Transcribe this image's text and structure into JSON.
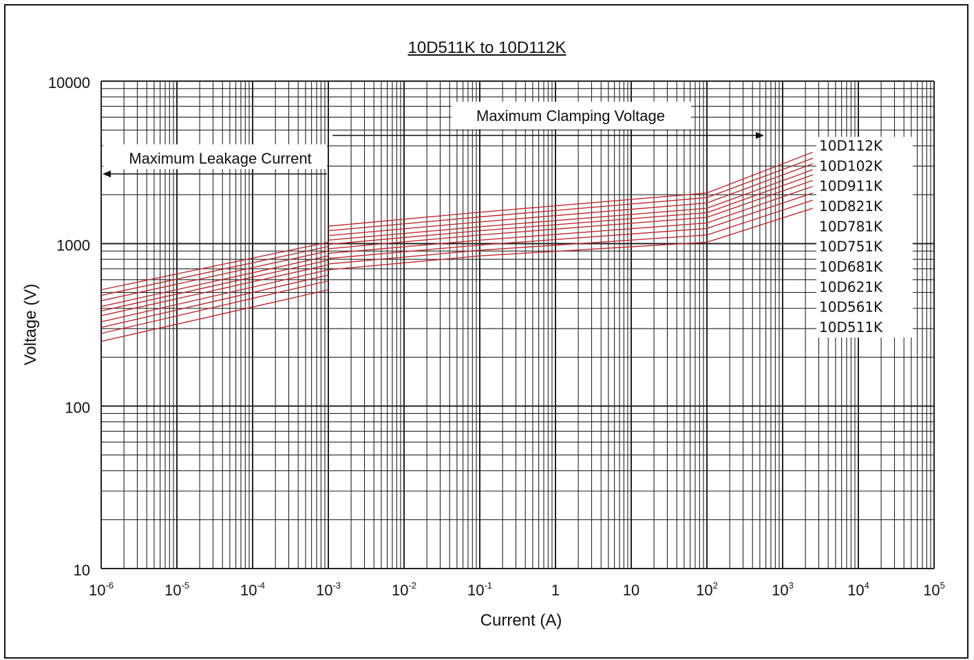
{
  "chart_data": {
    "type": "line",
    "title": "10D511K to 10D112K",
    "xlabel": "Current (A)",
    "ylabel": "Voltage (V)",
    "xscale": "log",
    "yscale": "log",
    "xlim": [
      1e-06,
      100000
    ],
    "ylim": [
      10,
      10000
    ],
    "grid": true,
    "x_ticks": [
      {
        "base": "10",
        "exp": "-6"
      },
      {
        "base": "10",
        "exp": "-5"
      },
      {
        "base": "10",
        "exp": "-4"
      },
      {
        "base": "10",
        "exp": "-3"
      },
      {
        "base": "10",
        "exp": "-2"
      },
      {
        "base": "10",
        "exp": "-1"
      },
      {
        "base": "1",
        "exp": ""
      },
      {
        "base": "10",
        "exp": ""
      },
      {
        "base": "10",
        "exp": "2"
      },
      {
        "base": "10",
        "exp": "3"
      },
      {
        "base": "10",
        "exp": "4"
      },
      {
        "base": "10",
        "exp": "5"
      }
    ],
    "y_ticks": [
      "10",
      "100",
      "1000",
      "10000"
    ],
    "annotations": [
      {
        "text": "Maximum Leakage Current",
        "direction": "left"
      },
      {
        "text": "Maximum Clamping Voltage",
        "direction": "right"
      }
    ],
    "legend_position": "right",
    "line_color": "#c0282d",
    "series": [
      {
        "name": "10D112K",
        "leakage": [
          [
            1e-06,
            520
          ],
          [
            0.001,
            1020
          ]
        ],
        "clamping": [
          [
            0.001,
            1280
          ],
          [
            0.1,
            1560
          ],
          [
            100,
            2050
          ],
          [
            2500,
            3650
          ]
        ]
      },
      {
        "name": "10D102K",
        "leakage": [
          [
            1e-06,
            480
          ],
          [
            0.001,
            960
          ]
        ],
        "clamping": [
          [
            0.001,
            1200
          ],
          [
            0.1,
            1460
          ],
          [
            100,
            1920
          ],
          [
            2500,
            3350
          ]
        ]
      },
      {
        "name": "10D911K",
        "leakage": [
          [
            1e-06,
            445
          ],
          [
            0.001,
            900
          ]
        ],
        "clamping": [
          [
            0.001,
            1120
          ],
          [
            0.1,
            1360
          ],
          [
            100,
            1780
          ],
          [
            2500,
            3100
          ]
        ]
      },
      {
        "name": "10D821K",
        "leakage": [
          [
            1e-06,
            410
          ],
          [
            0.001,
            840
          ]
        ],
        "clamping": [
          [
            0.001,
            1050
          ],
          [
            0.1,
            1270
          ],
          [
            100,
            1650
          ],
          [
            2500,
            2850
          ]
        ]
      },
      {
        "name": "10D781K",
        "leakage": [
          [
            1e-06,
            385
          ],
          [
            0.001,
            790
          ]
        ],
        "clamping": [
          [
            0.001,
            990
          ],
          [
            0.1,
            1200
          ],
          [
            100,
            1550
          ],
          [
            2500,
            2650
          ]
        ]
      },
      {
        "name": "10D751K",
        "leakage": [
          [
            1e-06,
            360
          ],
          [
            0.001,
            740
          ]
        ],
        "clamping": [
          [
            0.001,
            930
          ],
          [
            0.1,
            1130
          ],
          [
            100,
            1450
          ],
          [
            2500,
            2450
          ]
        ]
      },
      {
        "name": "10D681K",
        "leakage": [
          [
            1e-06,
            330
          ],
          [
            0.001,
            690
          ]
        ],
        "clamping": [
          [
            0.001,
            870
          ],
          [
            0.1,
            1050
          ],
          [
            100,
            1340
          ],
          [
            2500,
            2250
          ]
        ]
      },
      {
        "name": "10D621K",
        "leakage": [
          [
            1e-06,
            305
          ],
          [
            0.001,
            640
          ]
        ],
        "clamping": [
          [
            0.001,
            810
          ],
          [
            0.1,
            980
          ],
          [
            100,
            1240
          ],
          [
            2500,
            2050
          ]
        ]
      },
      {
        "name": "10D561K",
        "leakage": [
          [
            1e-06,
            280
          ],
          [
            0.001,
            590
          ]
        ],
        "clamping": [
          [
            0.001,
            750
          ],
          [
            0.1,
            910
          ],
          [
            100,
            1130
          ],
          [
            2500,
            1850
          ]
        ]
      },
      {
        "name": "10D511K",
        "leakage": [
          [
            1e-06,
            250
          ],
          [
            0.001,
            520
          ]
        ],
        "clamping": [
          [
            0.001,
            690
          ],
          [
            0.1,
            840
          ],
          [
            100,
            1020
          ],
          [
            2500,
            1650
          ]
        ]
      }
    ]
  }
}
